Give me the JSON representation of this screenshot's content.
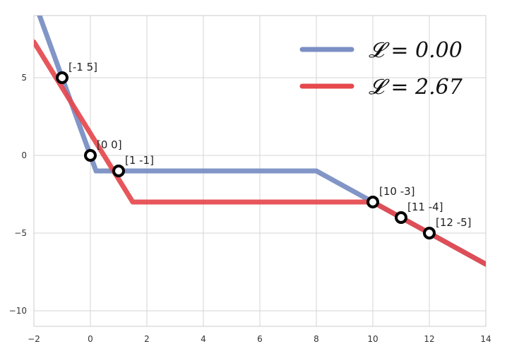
{
  "chart_data": {
    "type": "line",
    "title": "",
    "xlabel": "",
    "ylabel": "",
    "xlim": [
      -2,
      14
    ],
    "ylim": [
      -11,
      9
    ],
    "xticks": [
      -2,
      0,
      2,
      4,
      6,
      8,
      10,
      12,
      14
    ],
    "yticks": [
      -10,
      -5,
      0,
      5
    ],
    "grid": true,
    "legend_position": "top-right",
    "series": [
      {
        "name": "𝓛 = 0.00",
        "color": "#7b8fc4",
        "x": [
          -2,
          0.2,
          8,
          14
        ],
        "y": [
          10,
          -1,
          -1,
          -7
        ]
      },
      {
        "name": "𝓛 = 2.67",
        "color": "#e5484d",
        "x": [
          -2,
          1.5,
          10,
          14
        ],
        "y": [
          7.3,
          -3,
          -3,
          -7
        ]
      }
    ],
    "points": {
      "x": [
        -1,
        0,
        1,
        10,
        11,
        12
      ],
      "y": [
        5,
        0,
        -1,
        -3,
        -4,
        -5
      ],
      "labels": [
        "[-1 5]",
        "[0 0]",
        "[1 -1]",
        "[10 -3]",
        "[11 -4]",
        "[12 -5]"
      ]
    }
  }
}
